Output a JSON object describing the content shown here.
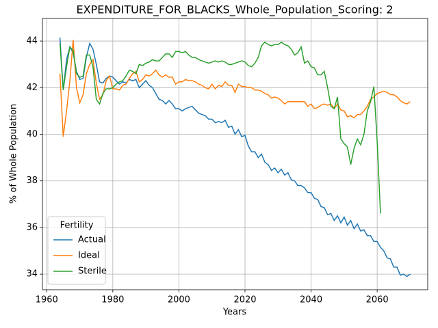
{
  "chart_data": {
    "type": "line",
    "title": "EXPENDITURE_FOR_BLACKS_Whole_Population_Scoring: 2",
    "xlabel": "Years",
    "ylabel": "% of Whole Population",
    "legend_title": "Fertility",
    "legend": "lower left",
    "xlim": [
      1958.7,
      2075.3
    ],
    "ylim": [
      33.33,
      44.97
    ],
    "xticks": [
      1960,
      1980,
      2000,
      2020,
      2040,
      2060
    ],
    "yticks": [
      34,
      36,
      38,
      40,
      42,
      44
    ],
    "grid": true,
    "x": [
      1964,
      1965,
      1966,
      1967,
      1968,
      1969,
      1970,
      1971,
      1972,
      1973,
      1974,
      1975,
      1976,
      1977,
      1978,
      1979,
      1980,
      1981,
      1982,
      1983,
      1984,
      1985,
      1986,
      1987,
      1988,
      1989,
      1990,
      1991,
      1992,
      1993,
      1994,
      1995,
      1996,
      1997,
      1998,
      1999,
      2000,
      2001,
      2002,
      2003,
      2004,
      2005,
      2006,
      2007,
      2008,
      2009,
      2010,
      2011,
      2012,
      2013,
      2014,
      2015,
      2016,
      2017,
      2018,
      2019,
      2020,
      2021,
      2022,
      2023,
      2024,
      2025,
      2026,
      2027,
      2028,
      2029,
      2030,
      2031,
      2032,
      2033,
      2034,
      2035,
      2036,
      2037,
      2038,
      2039,
      2040,
      2041,
      2042,
      2043,
      2044,
      2045,
      2046,
      2047,
      2048,
      2049,
      2050,
      2051,
      2052,
      2053,
      2054,
      2055,
      2056,
      2057,
      2058,
      2059,
      2060,
      2061,
      2062,
      2063,
      2064,
      2065,
      2066,
      2067,
      2068,
      2069,
      2070
    ],
    "series": [
      {
        "name": "Actual",
        "color": "#1f77b4",
        "values": [
          44.15,
          41.9,
          43.2,
          43.75,
          43.5,
          42.7,
          42.35,
          42.4,
          43.3,
          43.9,
          43.65,
          43.0,
          42.25,
          42.2,
          42.4,
          42.5,
          42.45,
          42.3,
          42.15,
          42.25,
          42.2,
          42.35,
          42.3,
          42.35,
          42.0,
          42.15,
          42.3,
          42.1,
          42.0,
          41.75,
          41.5,
          41.45,
          41.3,
          41.45,
          41.3,
          41.1,
          41.1,
          41.0,
          41.1,
          41.15,
          41.2,
          41.05,
          40.9,
          40.85,
          40.8,
          40.65,
          40.65,
          40.5,
          40.55,
          40.5,
          40.6,
          40.3,
          40.35,
          40.0,
          40.2,
          39.9,
          39.95,
          39.5,
          39.25,
          39.25,
          39.0,
          39.15,
          38.8,
          38.7,
          38.45,
          38.55,
          38.35,
          38.5,
          38.25,
          38.35,
          38.05,
          38.0,
          37.8,
          37.8,
          37.7,
          37.5,
          37.5,
          37.25,
          37.2,
          36.9,
          36.85,
          36.55,
          36.6,
          36.3,
          36.5,
          36.2,
          36.45,
          36.1,
          36.3,
          35.95,
          36.15,
          35.85,
          35.9,
          35.65,
          35.65,
          35.4,
          35.4,
          35.15,
          35.0,
          34.7,
          34.65,
          34.3,
          34.3,
          33.95,
          34.0,
          33.9,
          34.0
        ]
      },
      {
        "name": "Ideal",
        "color": "#ff7f0e",
        "values": [
          42.6,
          39.9,
          41.0,
          42.3,
          44.05,
          42.0,
          41.35,
          41.7,
          42.6,
          43.0,
          43.2,
          42.2,
          41.5,
          41.7,
          42.3,
          42.5,
          41.95,
          41.95,
          41.9,
          42.1,
          42.15,
          42.4,
          42.6,
          42.7,
          42.25,
          42.35,
          42.55,
          42.5,
          42.6,
          42.75,
          42.55,
          42.45,
          42.55,
          42.45,
          42.45,
          42.15,
          42.25,
          42.25,
          42.35,
          42.3,
          42.3,
          42.25,
          42.15,
          42.1,
          42.0,
          41.95,
          42.15,
          41.95,
          42.1,
          42.05,
          42.25,
          42.1,
          42.1,
          41.8,
          42.15,
          42.05,
          42.05,
          42.0,
          42.0,
          41.9,
          41.9,
          41.85,
          41.75,
          41.7,
          41.55,
          41.6,
          41.55,
          41.45,
          41.3,
          41.4,
          41.4,
          41.4,
          41.4,
          41.4,
          41.4,
          41.2,
          41.3,
          41.1,
          41.15,
          41.25,
          41.3,
          41.25,
          41.3,
          41.1,
          41.3,
          41.05,
          41.0,
          40.75,
          40.8,
          40.7,
          40.85,
          40.85,
          41.0,
          41.2,
          41.5,
          41.6,
          41.75,
          41.8,
          41.85,
          41.8,
          41.7,
          41.7,
          41.6,
          41.45,
          41.35,
          41.3,
          41.4
        ]
      },
      {
        "name": "Sterile",
        "color": "#2ca02c",
        "values": [
          43.9,
          41.9,
          42.9,
          43.75,
          43.6,
          42.6,
          42.45,
          42.5,
          43.4,
          43.4,
          42.9,
          41.5,
          41.3,
          41.75,
          41.95,
          41.95,
          42.0,
          42.15,
          42.25,
          42.3,
          42.5,
          42.75,
          42.7,
          42.6,
          43.0,
          42.95,
          43.05,
          43.1,
          43.2,
          43.15,
          43.15,
          43.3,
          43.45,
          43.45,
          43.3,
          43.55,
          43.55,
          43.5,
          43.55,
          43.4,
          43.3,
          43.3,
          43.2,
          43.15,
          43.1,
          43.05,
          43.1,
          43.15,
          43.1,
          43.15,
          43.1,
          43.0,
          43.0,
          43.05,
          43.1,
          43.15,
          43.1,
          42.95,
          42.9,
          43.05,
          43.3,
          43.8,
          43.95,
          43.85,
          43.8,
          43.85,
          43.85,
          43.95,
          43.85,
          43.8,
          43.65,
          43.4,
          43.5,
          43.75,
          43.05,
          43.15,
          42.9,
          42.85,
          42.55,
          42.55,
          42.7,
          42.0,
          41.2,
          41.1,
          41.6,
          39.8,
          39.6,
          39.45,
          38.7,
          39.4,
          39.8,
          39.55,
          40.0,
          41.0,
          41.4,
          42.05,
          39.7,
          36.6,
          null,
          null,
          null,
          null,
          null,
          null,
          null,
          null,
          null
        ]
      }
    ]
  }
}
